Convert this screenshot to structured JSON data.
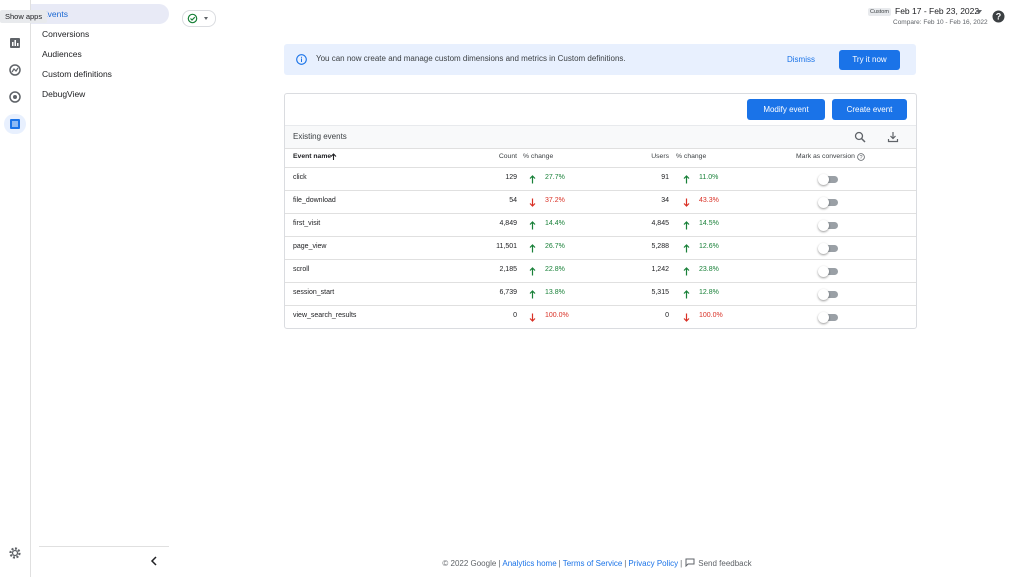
{
  "tooltip": "Show apps",
  "nav": {
    "items": [
      "Events",
      "Conversions",
      "Audiences",
      "Custom definitions",
      "DebugView"
    ]
  },
  "header": {
    "date_badge": "Custom",
    "date_range": "Feb 17 - Feb 23, 2022",
    "compare": "Compare: Feb 10 - Feb 16, 2022"
  },
  "banner": {
    "text": "You can now create and manage custom dimensions and metrics in Custom definitions.",
    "dismiss": "Dismiss",
    "action": "Try it now"
  },
  "card": {
    "buttons": [
      "Modify event",
      "Create event"
    ],
    "title": "Existing events",
    "columns": [
      "Event name",
      "Count",
      "% change",
      "Users",
      "% change",
      "Mark as conversion"
    ],
    "rows": [
      {
        "name": "click",
        "count": "129",
        "count_trend": "up",
        "count_change": "27.7%",
        "users": "91",
        "users_trend": "up",
        "users_change": "11.0%"
      },
      {
        "name": "file_download",
        "count": "54",
        "count_trend": "down",
        "count_change": "37.2%",
        "users": "34",
        "users_trend": "down",
        "users_change": "43.3%"
      },
      {
        "name": "first_visit",
        "count": "4,849",
        "count_trend": "up",
        "count_change": "14.4%",
        "users": "4,845",
        "users_trend": "up",
        "users_change": "14.5%"
      },
      {
        "name": "page_view",
        "count": "11,501",
        "count_trend": "up",
        "count_change": "26.7%",
        "users": "5,288",
        "users_trend": "up",
        "users_change": "12.6%"
      },
      {
        "name": "scroll",
        "count": "2,185",
        "count_trend": "up",
        "count_change": "22.8%",
        "users": "1,242",
        "users_trend": "up",
        "users_change": "23.8%"
      },
      {
        "name": "session_start",
        "count": "6,739",
        "count_trend": "up",
        "count_change": "13.8%",
        "users": "5,315",
        "users_trend": "up",
        "users_change": "12.8%"
      },
      {
        "name": "view_search_results",
        "count": "0",
        "count_trend": "down",
        "count_change": "100.0%",
        "users": "0",
        "users_trend": "down",
        "users_change": "100.0%"
      }
    ]
  },
  "footer": {
    "copyright": "© 2022 Google",
    "separator": "|",
    "links": [
      "Analytics home",
      "Terms of Service",
      "Privacy Policy"
    ],
    "feedback": "Send feedback"
  }
}
